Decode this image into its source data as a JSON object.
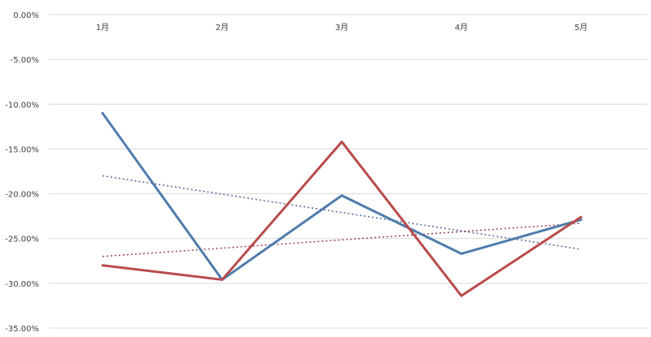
{
  "chart_data": {
    "type": "line",
    "categories": [
      "1月",
      "2月",
      "3月",
      "4月",
      "5月"
    ],
    "ylim": [
      -0.35,
      0
    ],
    "yticks": [
      0,
      -0.05,
      -0.1,
      -0.15,
      -0.2,
      -0.25,
      -0.3,
      -0.35
    ],
    "ytick_labels": [
      "0.00%",
      "-5.00%",
      "-10.00%",
      "-15.00%",
      "-20.00%",
      "-25.00%",
      "-30.00%",
      "-35.00%"
    ],
    "grid": true,
    "x_axis_position": "top",
    "series": [
      {
        "values": [
          -0.11,
          -0.296,
          -0.202,
          -0.267,
          -0.229
        ],
        "color": "#4f7bab"
      },
      {
        "values": [
          -0.28,
          -0.296,
          -0.142,
          -0.314,
          -0.226
        ],
        "color": "#b84b4b"
      }
    ],
    "trendlines": [
      {
        "type": "linear",
        "start": -0.18,
        "end": -0.262,
        "color": "#5a6fa0"
      },
      {
        "type": "linear",
        "start": -0.27,
        "end": -0.233,
        "color": "#9e4a5e"
      }
    ]
  }
}
